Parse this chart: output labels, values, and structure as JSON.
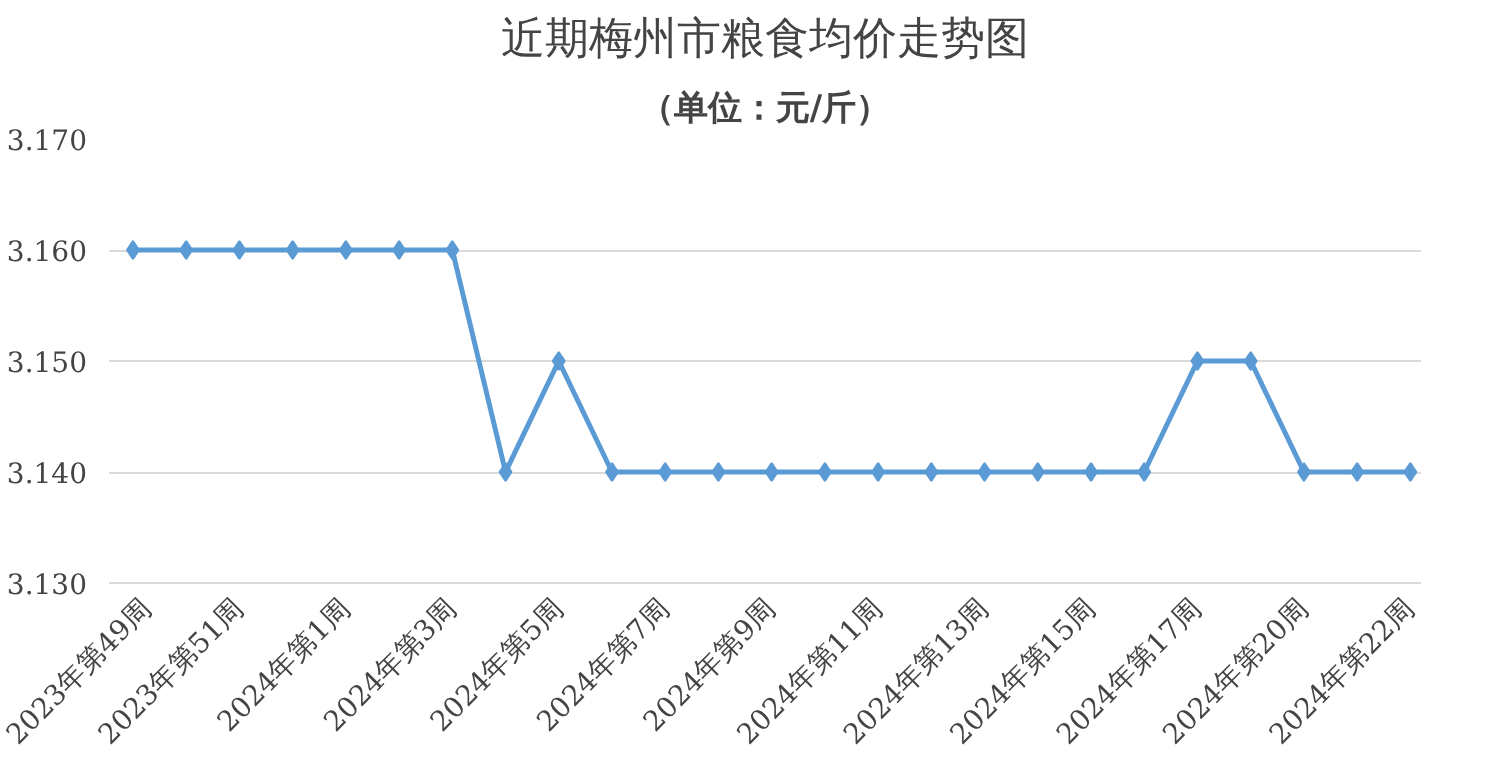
{
  "chart_data": {
    "type": "line",
    "title": "近期梅州市粮食均价走势图",
    "subtitle": "（单位：元/斤）",
    "categories": [
      "2023年第49周",
      null,
      "2023年第51周",
      null,
      "2024年第1周",
      null,
      "2024年第3周",
      null,
      "2024年第5周",
      null,
      "2024年第7周",
      null,
      "2024年第9周",
      null,
      "2024年第11周",
      null,
      "2024年第13周",
      null,
      "2024年第15周",
      null,
      "2024年第17周",
      null,
      "2024年第20周",
      null,
      "2024年第22周"
    ],
    "series": [
      {
        "color": "#5b9bd5",
        "values": [
          3.16,
          3.16,
          3.16,
          3.16,
          3.16,
          3.16,
          3.16,
          3.14,
          3.15,
          3.14,
          3.14,
          3.14,
          3.14,
          3.14,
          3.14,
          3.14,
          3.14,
          3.14,
          3.14,
          3.14,
          3.15,
          3.15,
          3.14,
          3.14,
          3.14
        ]
      }
    ],
    "ylim": [
      3.13,
      3.17
    ],
    "yticks": [
      {
        "value": 3.13,
        "label": "3.130"
      },
      {
        "value": 3.14,
        "label": "3.140"
      },
      {
        "value": 3.15,
        "label": "3.150"
      },
      {
        "value": 3.16,
        "label": "3.160"
      },
      {
        "value": 3.17,
        "label": "3.170"
      }
    ],
    "grid": "y",
    "marker": "diamond",
    "line_style": "solid"
  }
}
